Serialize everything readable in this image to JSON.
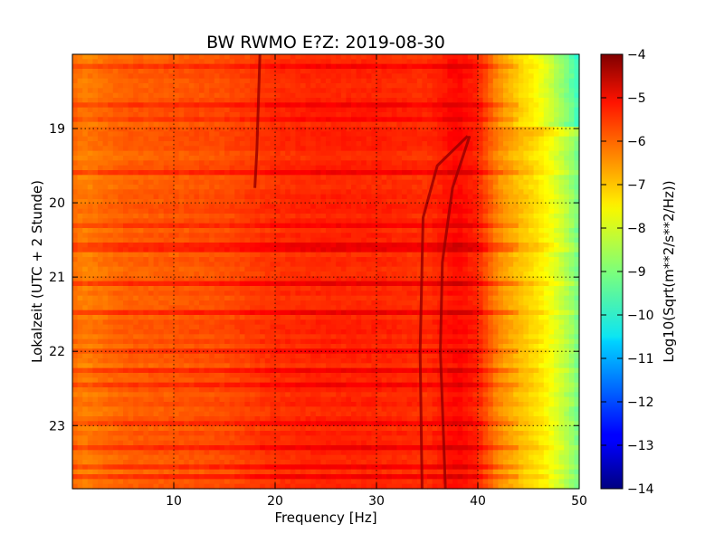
{
  "chart_data": {
    "type": "heatmap",
    "title": "BW RWMO E?Z: 2019-08-30",
    "xlabel": "Frequency [Hz]",
    "ylabel": "Lokalzeit (UTC + 2 Stunde)",
    "xlim": [
      0,
      50
    ],
    "ylim": [
      23.85,
      18.0
    ],
    "x_ticks": [
      10,
      20,
      30,
      40,
      50
    ],
    "y_ticks": [
      19,
      20,
      21,
      22,
      23
    ],
    "grid": true,
    "colormap": "jet",
    "colorbar": {
      "label": "Log10(Sqrt(m**2/s**2/Hz))",
      "min": -14,
      "max": -4,
      "ticks": [
        -4,
        -5,
        -6,
        -7,
        -8,
        -9,
        -10,
        -11,
        -12,
        -13,
        -14
      ]
    },
    "profile": {
      "frequency": [
        0,
        1,
        5,
        10,
        15,
        20,
        25,
        30,
        35,
        38,
        40,
        41,
        42,
        44,
        45,
        46,
        47,
        48,
        49,
        50
      ],
      "value": [
        -6.3,
        -6.5,
        -6.2,
        -6.1,
        -6.0,
        -5.7,
        -5.6,
        -5.6,
        -5.7,
        -5.3,
        -5.6,
        -6.1,
        -6.6,
        -7.1,
        -7.3,
        -7.5,
        -7.8,
        -8.2,
        -8.6,
        -9.2
      ]
    },
    "noise_bands": [
      {
        "from": 18.0,
        "to": 19.1,
        "delta": -0.4
      },
      {
        "from": 19.0,
        "to": 19.1,
        "delta": 0.7
      }
    ],
    "dark_lines": [
      {
        "name": "line-18hz",
        "points": [
          [
            18.5,
            18.0
          ],
          [
            18.2,
            19.3
          ],
          [
            18.0,
            19.8
          ]
        ]
      },
      {
        "name": "line-34hz",
        "points": [
          [
            39.0,
            19.1
          ],
          [
            36.0,
            19.5
          ],
          [
            34.6,
            20.2
          ],
          [
            34.3,
            22.0
          ],
          [
            34.5,
            23.85
          ]
        ]
      },
      {
        "name": "line-37hz",
        "points": [
          [
            39.2,
            19.1
          ],
          [
            37.5,
            19.8
          ],
          [
            36.5,
            20.8
          ],
          [
            36.3,
            22.0
          ],
          [
            36.8,
            23.85
          ]
        ]
      }
    ],
    "dark_rows": [
      18.15,
      18.7,
      18.85,
      19.6,
      20.3,
      20.6,
      21.1,
      21.5,
      22.0,
      22.25,
      22.45,
      23.0,
      23.3,
      23.55,
      23.7
    ]
  }
}
